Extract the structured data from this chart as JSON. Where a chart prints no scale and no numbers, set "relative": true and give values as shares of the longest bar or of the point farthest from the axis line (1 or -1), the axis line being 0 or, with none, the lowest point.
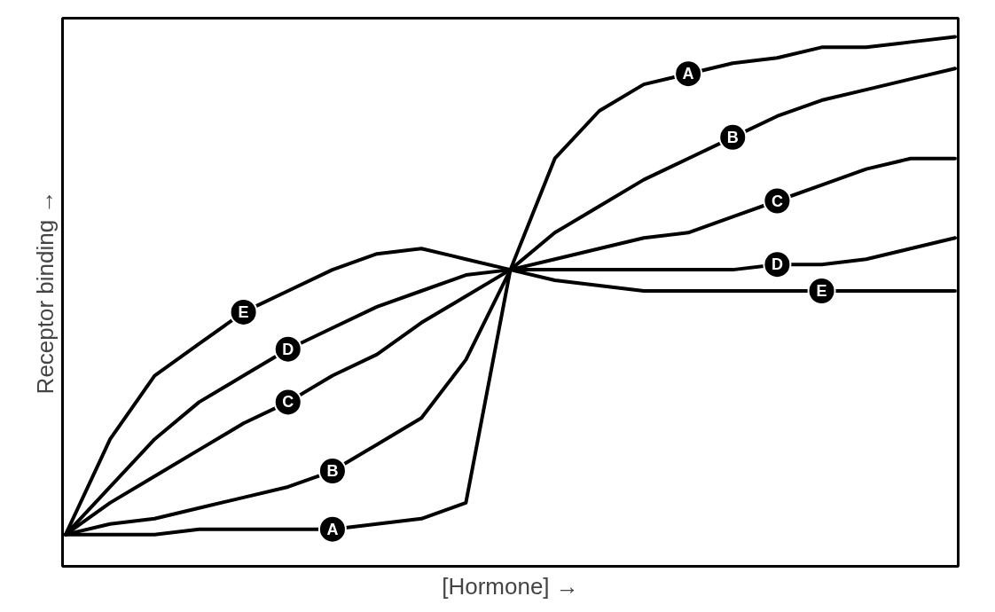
{
  "chart_data": {
    "type": "line",
    "relative": true,
    "xlabel": "[Hormone] →",
    "ylabel": "Receptor binding →",
    "categories": [
      null,
      null,
      null,
      null,
      null,
      null,
      null,
      null,
      null,
      null,
      null,
      null,
      null,
      null,
      null,
      null,
      null,
      null,
      null,
      null,
      null
    ],
    "series": [
      {
        "name": "A",
        "color": "#000000",
        "values": [
          0.06,
          0.06,
          0.06,
          0.07,
          0.07,
          0.07,
          0.07,
          0.08,
          0.09,
          0.12,
          0.56,
          0.77,
          0.86,
          0.91,
          0.93,
          0.95,
          0.96,
          0.98,
          0.98,
          0.99,
          1.0
        ]
      },
      {
        "name": "B",
        "color": "#000000",
        "values": [
          0.06,
          0.08,
          0.09,
          0.11,
          0.13,
          0.15,
          0.18,
          0.23,
          0.28,
          0.39,
          0.56,
          0.63,
          0.68,
          0.73,
          0.77,
          0.81,
          0.85,
          0.88,
          0.9,
          0.92,
          0.94
        ]
      },
      {
        "name": "C",
        "color": "#000000",
        "values": [
          0.06,
          0.12,
          0.17,
          0.22,
          0.27,
          0.31,
          0.36,
          0.4,
          0.46,
          0.51,
          0.56,
          0.58,
          0.6,
          0.62,
          0.63,
          0.66,
          0.69,
          0.72,
          0.75,
          0.77,
          0.77
        ]
      },
      {
        "name": "D",
        "color": "#000000",
        "values": [
          0.06,
          0.15,
          0.24,
          0.31,
          0.36,
          0.41,
          0.45,
          0.49,
          0.52,
          0.55,
          0.56,
          0.56,
          0.56,
          0.56,
          0.56,
          0.56,
          0.57,
          0.57,
          0.58,
          0.6,
          0.62
        ]
      },
      {
        "name": "E",
        "color": "#000000",
        "values": [
          0.06,
          0.24,
          0.36,
          0.42,
          0.48,
          0.52,
          0.56,
          0.59,
          0.6,
          0.58,
          0.56,
          0.54,
          0.53,
          0.52,
          0.52,
          0.52,
          0.52,
          0.52,
          0.52,
          0.52,
          0.52
        ]
      }
    ]
  }
}
